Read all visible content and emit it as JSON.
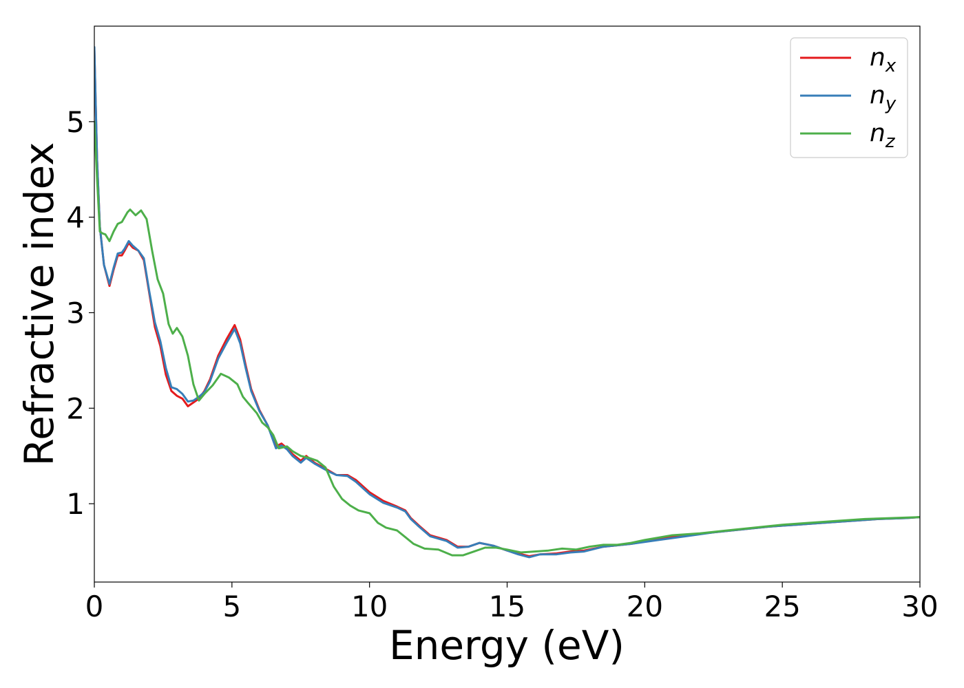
{
  "chart_data": {
    "type": "line",
    "title": "",
    "xlabel": "Energy (eV)",
    "ylabel": "Refractive index",
    "xlim": [
      0,
      30
    ],
    "ylim": [
      0.18,
      6.0
    ],
    "xticks": [
      "0",
      "5",
      "10",
      "15",
      "20",
      "25",
      "30"
    ],
    "yticks": [
      "1",
      "2",
      "3",
      "4",
      "5"
    ],
    "grid": false,
    "legend_position": "top-right",
    "series": [
      {
        "name": "n_x",
        "label_base": "n",
        "label_sub": "x",
        "color": "#e41a1c",
        "points": [
          [
            0,
            5.75
          ],
          [
            0.1,
            4.6
          ],
          [
            0.2,
            3.9
          ],
          [
            0.35,
            3.5
          ],
          [
            0.55,
            3.28
          ],
          [
            0.7,
            3.45
          ],
          [
            0.85,
            3.6
          ],
          [
            1.0,
            3.6
          ],
          [
            1.1,
            3.65
          ],
          [
            1.25,
            3.73
          ],
          [
            1.4,
            3.68
          ],
          [
            1.6,
            3.65
          ],
          [
            1.8,
            3.55
          ],
          [
            2.0,
            3.2
          ],
          [
            2.2,
            2.85
          ],
          [
            2.4,
            2.65
          ],
          [
            2.6,
            2.35
          ],
          [
            2.8,
            2.18
          ],
          [
            3.0,
            2.13
          ],
          [
            3.2,
            2.1
          ],
          [
            3.4,
            2.02
          ],
          [
            3.6,
            2.06
          ],
          [
            3.8,
            2.1
          ],
          [
            4.0,
            2.18
          ],
          [
            4.2,
            2.3
          ],
          [
            4.5,
            2.55
          ],
          [
            4.8,
            2.72
          ],
          [
            5.1,
            2.87
          ],
          [
            5.3,
            2.72
          ],
          [
            5.5,
            2.45
          ],
          [
            5.7,
            2.2
          ],
          [
            6.0,
            1.98
          ],
          [
            6.3,
            1.82
          ],
          [
            6.6,
            1.6
          ],
          [
            6.8,
            1.63
          ],
          [
            7.0,
            1.58
          ],
          [
            7.2,
            1.52
          ],
          [
            7.5,
            1.45
          ],
          [
            7.7,
            1.5
          ],
          [
            8.0,
            1.43
          ],
          [
            8.5,
            1.35
          ],
          [
            8.8,
            1.3
          ],
          [
            9.2,
            1.3
          ],
          [
            9.5,
            1.25
          ],
          [
            10.0,
            1.12
          ],
          [
            10.5,
            1.03
          ],
          [
            11.0,
            0.97
          ],
          [
            11.3,
            0.93
          ],
          [
            11.5,
            0.85
          ],
          [
            11.8,
            0.77
          ],
          [
            12.2,
            0.67
          ],
          [
            12.8,
            0.62
          ],
          [
            13.2,
            0.55
          ],
          [
            13.6,
            0.55
          ],
          [
            14.0,
            0.59
          ],
          [
            14.5,
            0.56
          ],
          [
            15.0,
            0.51
          ],
          [
            15.4,
            0.48
          ],
          [
            15.8,
            0.45
          ],
          [
            16.2,
            0.47
          ],
          [
            16.8,
            0.48
          ],
          [
            17.3,
            0.5
          ],
          [
            17.8,
            0.51
          ],
          [
            18.5,
            0.55
          ],
          [
            19.5,
            0.58
          ],
          [
            20.5,
            0.63
          ],
          [
            21.5,
            0.67
          ],
          [
            22.5,
            0.7
          ],
          [
            23.5,
            0.73
          ],
          [
            24.5,
            0.76
          ],
          [
            25.5,
            0.78
          ],
          [
            26.5,
            0.8
          ],
          [
            27.5,
            0.82
          ],
          [
            28.5,
            0.84
          ],
          [
            29.5,
            0.85
          ],
          [
            30.0,
            0.86
          ]
        ]
      },
      {
        "name": "n_y",
        "label_base": "n",
        "label_sub": "y",
        "color": "#377eb8",
        "points": [
          [
            0,
            5.78
          ],
          [
            0.1,
            4.6
          ],
          [
            0.2,
            3.9
          ],
          [
            0.35,
            3.5
          ],
          [
            0.55,
            3.3
          ],
          [
            0.7,
            3.47
          ],
          [
            0.85,
            3.62
          ],
          [
            1.0,
            3.63
          ],
          [
            1.1,
            3.67
          ],
          [
            1.25,
            3.75
          ],
          [
            1.4,
            3.7
          ],
          [
            1.6,
            3.65
          ],
          [
            1.8,
            3.57
          ],
          [
            2.0,
            3.22
          ],
          [
            2.2,
            2.9
          ],
          [
            2.4,
            2.7
          ],
          [
            2.6,
            2.42
          ],
          [
            2.8,
            2.22
          ],
          [
            3.0,
            2.2
          ],
          [
            3.2,
            2.15
          ],
          [
            3.4,
            2.07
          ],
          [
            3.6,
            2.08
          ],
          [
            3.8,
            2.12
          ],
          [
            4.0,
            2.17
          ],
          [
            4.2,
            2.28
          ],
          [
            4.5,
            2.52
          ],
          [
            4.8,
            2.68
          ],
          [
            5.1,
            2.83
          ],
          [
            5.3,
            2.68
          ],
          [
            5.5,
            2.42
          ],
          [
            5.7,
            2.18
          ],
          [
            6.0,
            1.97
          ],
          [
            6.3,
            1.82
          ],
          [
            6.6,
            1.58
          ],
          [
            6.8,
            1.61
          ],
          [
            7.0,
            1.57
          ],
          [
            7.2,
            1.5
          ],
          [
            7.5,
            1.43
          ],
          [
            7.7,
            1.48
          ],
          [
            8.0,
            1.42
          ],
          [
            8.5,
            1.34
          ],
          [
            8.8,
            1.3
          ],
          [
            9.2,
            1.29
          ],
          [
            9.5,
            1.23
          ],
          [
            10.0,
            1.1
          ],
          [
            10.5,
            1.01
          ],
          [
            11.0,
            0.96
          ],
          [
            11.3,
            0.92
          ],
          [
            11.5,
            0.84
          ],
          [
            11.8,
            0.76
          ],
          [
            12.2,
            0.66
          ],
          [
            12.8,
            0.61
          ],
          [
            13.2,
            0.54
          ],
          [
            13.6,
            0.55
          ],
          [
            14.0,
            0.59
          ],
          [
            14.5,
            0.56
          ],
          [
            15.0,
            0.51
          ],
          [
            15.4,
            0.47
          ],
          [
            15.8,
            0.44
          ],
          [
            16.2,
            0.47
          ],
          [
            16.8,
            0.47
          ],
          [
            17.3,
            0.49
          ],
          [
            17.8,
            0.5
          ],
          [
            18.5,
            0.55
          ],
          [
            19.5,
            0.58
          ],
          [
            20.5,
            0.62
          ],
          [
            21.5,
            0.66
          ],
          [
            22.5,
            0.7
          ],
          [
            23.5,
            0.73
          ],
          [
            24.5,
            0.76
          ],
          [
            25.5,
            0.78
          ],
          [
            26.5,
            0.8
          ],
          [
            27.5,
            0.82
          ],
          [
            28.5,
            0.84
          ],
          [
            29.5,
            0.85
          ],
          [
            30.0,
            0.86
          ]
        ]
      },
      {
        "name": "n_z",
        "label_base": "n",
        "label_sub": "z",
        "color": "#4daf4a",
        "points": [
          [
            0,
            5.0
          ],
          [
            0.1,
            4.4
          ],
          [
            0.2,
            3.85
          ],
          [
            0.3,
            3.83
          ],
          [
            0.4,
            3.82
          ],
          [
            0.55,
            3.75
          ],
          [
            0.7,
            3.85
          ],
          [
            0.85,
            3.93
          ],
          [
            1.0,
            3.95
          ],
          [
            1.2,
            4.05
          ],
          [
            1.3,
            4.08
          ],
          [
            1.5,
            4.02
          ],
          [
            1.7,
            4.07
          ],
          [
            1.9,
            3.98
          ],
          [
            2.1,
            3.65
          ],
          [
            2.3,
            3.35
          ],
          [
            2.5,
            3.2
          ],
          [
            2.7,
            2.88
          ],
          [
            2.85,
            2.78
          ],
          [
            3.0,
            2.84
          ],
          [
            3.2,
            2.75
          ],
          [
            3.4,
            2.55
          ],
          [
            3.6,
            2.25
          ],
          [
            3.8,
            2.08
          ],
          [
            4.0,
            2.15
          ],
          [
            4.3,
            2.24
          ],
          [
            4.6,
            2.36
          ],
          [
            4.9,
            2.32
          ],
          [
            5.2,
            2.25
          ],
          [
            5.4,
            2.12
          ],
          [
            5.6,
            2.05
          ],
          [
            5.9,
            1.95
          ],
          [
            6.1,
            1.85
          ],
          [
            6.3,
            1.8
          ],
          [
            6.5,
            1.72
          ],
          [
            6.7,
            1.58
          ],
          [
            7.0,
            1.6
          ],
          [
            7.2,
            1.55
          ],
          [
            7.5,
            1.5
          ],
          [
            7.8,
            1.48
          ],
          [
            8.1,
            1.45
          ],
          [
            8.4,
            1.38
          ],
          [
            8.7,
            1.18
          ],
          [
            9.0,
            1.05
          ],
          [
            9.3,
            0.98
          ],
          [
            9.6,
            0.93
          ],
          [
            10.0,
            0.9
          ],
          [
            10.3,
            0.8
          ],
          [
            10.6,
            0.75
          ],
          [
            11.0,
            0.72
          ],
          [
            11.3,
            0.65
          ],
          [
            11.6,
            0.58
          ],
          [
            12.0,
            0.53
          ],
          [
            12.5,
            0.52
          ],
          [
            13.0,
            0.46
          ],
          [
            13.4,
            0.46
          ],
          [
            13.8,
            0.5
          ],
          [
            14.2,
            0.54
          ],
          [
            14.6,
            0.54
          ],
          [
            15.0,
            0.52
          ],
          [
            15.5,
            0.49
          ],
          [
            16.0,
            0.5
          ],
          [
            16.5,
            0.51
          ],
          [
            17.0,
            0.53
          ],
          [
            17.5,
            0.52
          ],
          [
            18.0,
            0.55
          ],
          [
            18.5,
            0.57
          ],
          [
            19.0,
            0.57
          ],
          [
            19.5,
            0.59
          ],
          [
            20.0,
            0.62
          ],
          [
            21.0,
            0.67
          ],
          [
            22.0,
            0.69
          ],
          [
            23.0,
            0.72
          ],
          [
            24.0,
            0.75
          ],
          [
            25.0,
            0.78
          ],
          [
            26.0,
            0.8
          ],
          [
            27.0,
            0.82
          ],
          [
            28.0,
            0.84
          ],
          [
            29.0,
            0.85
          ],
          [
            30.0,
            0.86
          ]
        ]
      }
    ]
  }
}
